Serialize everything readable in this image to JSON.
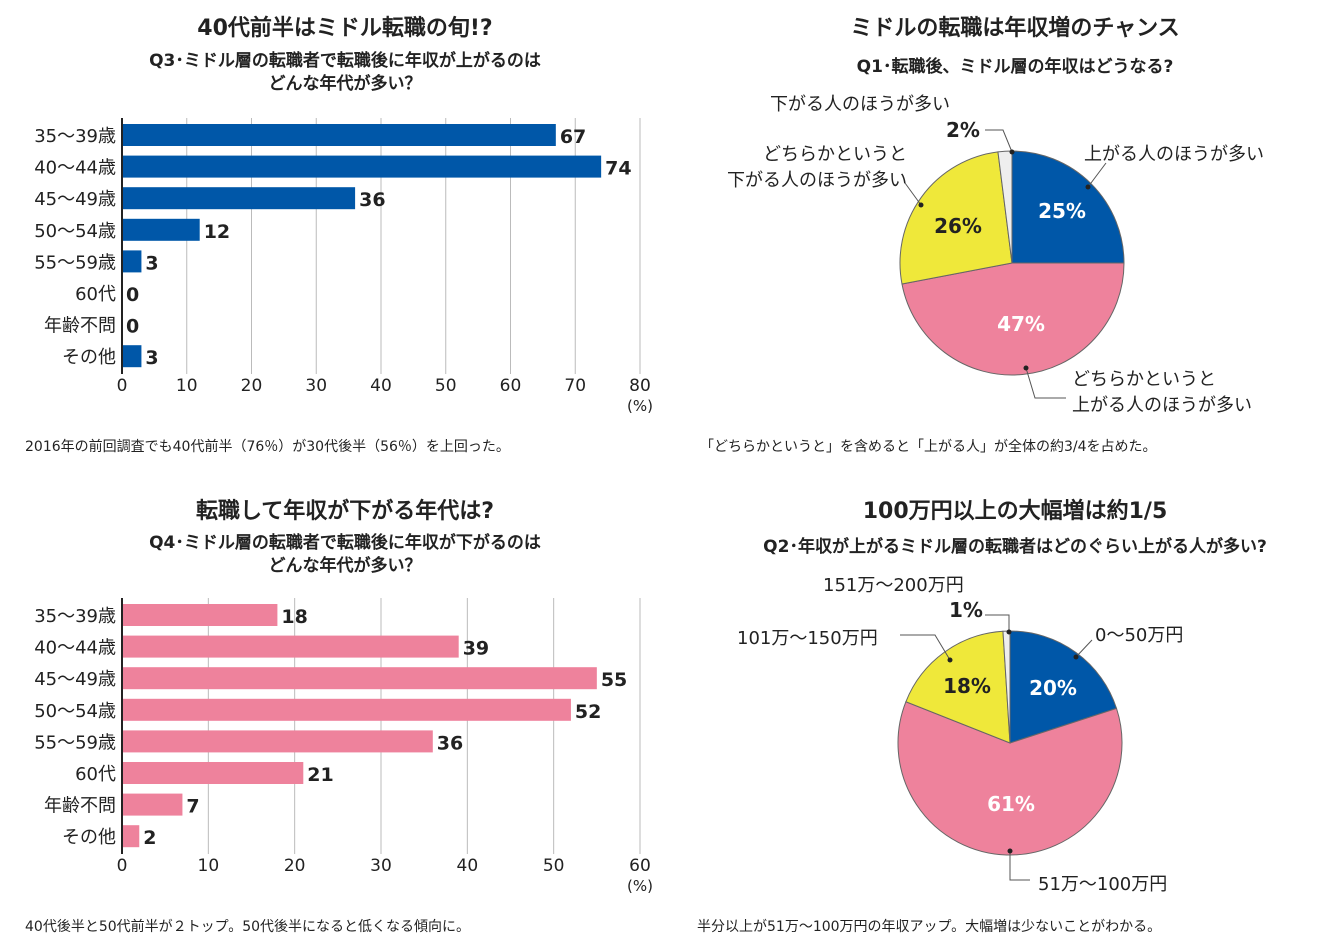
{
  "colors": {
    "blue": "#0057a8",
    "pink": "#ee829c",
    "yellow": "#efe83a",
    "grey": "#eeeeee"
  },
  "chart_data": [
    {
      "type": "bar",
      "orientation": "horizontal",
      "title": "40代前半はミドル転職の旬!?",
      "subtitle": "Q3･ミドル層の転職者で転職後に年収が上がるのは\nどんな年代が多い？",
      "categories": [
        "35〜39歳",
        "40〜44歳",
        "45〜49歳",
        "50〜54歳",
        "55〜59歳",
        "60代",
        "年齢不問",
        "その他"
      ],
      "values": [
        67,
        74,
        36,
        12,
        3,
        0,
        0,
        3
      ],
      "xlim": [
        0,
        80
      ],
      "xticks": [
        0,
        10,
        20,
        30,
        40,
        50,
        60,
        70,
        80
      ],
      "unit": "(%)",
      "color": "#0057a8",
      "grid": true,
      "note": "2016年の前回調査でも40代前半（76％）が30代後半（56％）を上回った。"
    },
    {
      "type": "pie",
      "title": "ミドルの転職は年収増のチャンス",
      "subtitle": "Q1･転職後、ミドル層の年収はどうなる?",
      "slices": [
        {
          "label": "上がる人のほうが多い",
          "value": 25,
          "color": "#0057a8"
        },
        {
          "label": "どちらかというと\n上がる人のほうが多い",
          "value": 47,
          "color": "#ee829c"
        },
        {
          "label": "どちらかというと\n下がる人のほうが多い",
          "value": 26,
          "color": "#efe83a"
        },
        {
          "label": "下がる人のほうが多い",
          "value": 2,
          "color": "#eeeeee"
        }
      ],
      "note": "「どちらかというと」を含めると「上がる人」が全体の約3/4を占めた。"
    },
    {
      "type": "bar",
      "orientation": "horizontal",
      "title": "転職して年収が下がる年代は?",
      "subtitle": "Q4･ミドル層の転職者で転職後に年収が下がるのは\nどんな年代が多い？",
      "categories": [
        "35〜39歳",
        "40〜44歳",
        "45〜49歳",
        "50〜54歳",
        "55〜59歳",
        "60代",
        "年齢不問",
        "その他"
      ],
      "values": [
        18,
        39,
        55,
        52,
        36,
        21,
        7,
        2
      ],
      "xlim": [
        0,
        60
      ],
      "xticks": [
        0,
        10,
        20,
        30,
        40,
        50,
        60
      ],
      "unit": "(%)",
      "color": "#ee829c",
      "grid": true,
      "note": "40代後半と50代前半が２トップ。50代後半になると低くなる傾向に。"
    },
    {
      "type": "pie",
      "title": "100万円以上の大幅増は約1/5",
      "subtitle": "Q2･年収が上がるミドル層の転職者はどのぐらい上がる人が多い?",
      "slices": [
        {
          "label": "0〜50万円",
          "value": 20,
          "color": "#0057a8"
        },
        {
          "label": "51万〜100万円",
          "value": 61,
          "color": "#ee829c"
        },
        {
          "label": "101万〜150万円",
          "value": 18,
          "color": "#efe83a"
        },
        {
          "label": "151万〜200万円",
          "value": 1,
          "color": "#eeeeee"
        }
      ],
      "note": "半分以上が51万〜100万円の年収アップ。大幅増は少ないことがわかる。"
    }
  ]
}
